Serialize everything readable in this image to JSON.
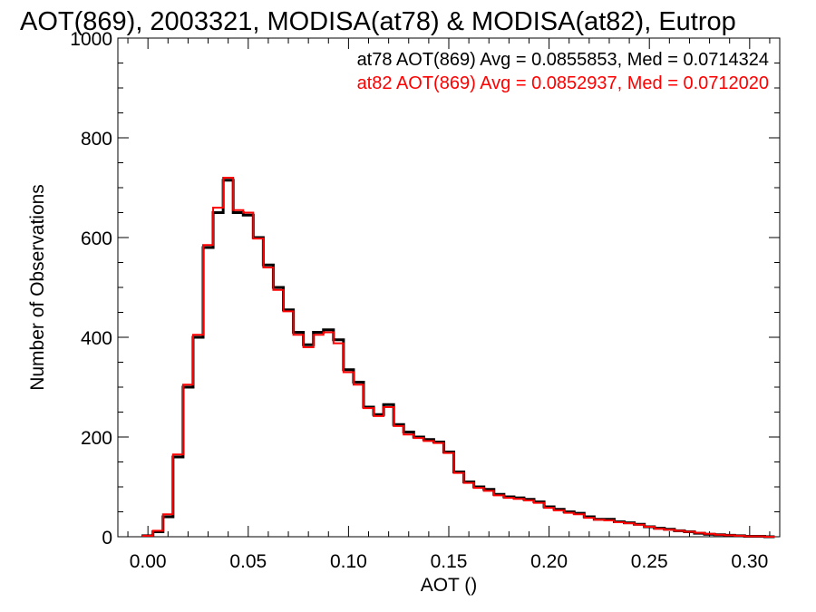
{
  "chart_data": {
    "type": "line",
    "title": "AOT(869), 2003321, MODISA(at78) & MODISA(at82), Eutrop",
    "xlabel": "AOT ()",
    "ylabel": "Number of Observations",
    "xlim": [
      -0.015,
      0.315
    ],
    "ylim": [
      0,
      1000
    ],
    "xticks": [
      0.0,
      0.05,
      0.1,
      0.15,
      0.2,
      0.25,
      0.3
    ],
    "xtick_labels": [
      "0.00",
      "0.05",
      "0.10",
      "0.15",
      "0.20",
      "0.25",
      "0.30"
    ],
    "yticks": [
      0,
      200,
      400,
      600,
      800,
      1000
    ],
    "ytick_labels": [
      "0",
      "200",
      "400",
      "600",
      "800",
      "1000"
    ],
    "grid": false,
    "legend_position": "top-right",
    "annotations": [
      {
        "text": "at78 AOT(869) Avg = 0.0855853, Med = 0.0714324",
        "color": "#000000"
      },
      {
        "text": "at82 AOT(869) Avg = 0.0852937, Med = 0.0712020",
        "color": "#ff0000"
      }
    ],
    "series": [
      {
        "color": "#000000",
        "x": [
          0.0,
          0.005,
          0.01,
          0.015,
          0.02,
          0.025,
          0.03,
          0.035,
          0.04,
          0.045,
          0.05,
          0.055,
          0.06,
          0.065,
          0.07,
          0.075,
          0.08,
          0.085,
          0.09,
          0.095,
          0.1,
          0.105,
          0.11,
          0.115,
          0.12,
          0.125,
          0.13,
          0.135,
          0.14,
          0.145,
          0.15,
          0.155,
          0.16,
          0.165,
          0.17,
          0.175,
          0.18,
          0.185,
          0.19,
          0.195,
          0.2,
          0.205,
          0.21,
          0.215,
          0.22,
          0.225,
          0.23,
          0.235,
          0.24,
          0.245,
          0.25,
          0.255,
          0.26,
          0.265,
          0.27,
          0.275,
          0.28,
          0.285,
          0.29,
          0.295,
          0.3,
          0.305,
          0.31
        ],
        "y": [
          2,
          10,
          40,
          160,
          300,
          400,
          580,
          650,
          715,
          650,
          645,
          600,
          545,
          500,
          455,
          410,
          385,
          410,
          415,
          395,
          335,
          310,
          260,
          245,
          265,
          225,
          210,
          200,
          195,
          190,
          170,
          130,
          110,
          100,
          95,
          85,
          80,
          78,
          75,
          70,
          60,
          55,
          50,
          47,
          40,
          35,
          35,
          30,
          28,
          25,
          20,
          17,
          15,
          12,
          10,
          7,
          5,
          4,
          3,
          2,
          1,
          1,
          0
        ]
      },
      {
        "color": "#ff0000",
        "x": [
          0.0,
          0.005,
          0.01,
          0.015,
          0.02,
          0.025,
          0.03,
          0.035,
          0.04,
          0.045,
          0.05,
          0.055,
          0.06,
          0.065,
          0.07,
          0.075,
          0.08,
          0.085,
          0.09,
          0.095,
          0.1,
          0.105,
          0.11,
          0.115,
          0.12,
          0.125,
          0.13,
          0.135,
          0.14,
          0.145,
          0.15,
          0.155,
          0.16,
          0.165,
          0.17,
          0.175,
          0.18,
          0.185,
          0.19,
          0.195,
          0.2,
          0.205,
          0.21,
          0.215,
          0.22,
          0.225,
          0.23,
          0.235,
          0.24,
          0.245,
          0.25,
          0.255,
          0.26,
          0.265,
          0.27,
          0.275,
          0.28,
          0.285,
          0.29,
          0.295,
          0.3,
          0.305,
          0.31
        ],
        "y": [
          2,
          12,
          45,
          165,
          305,
          405,
          585,
          660,
          720,
          655,
          650,
          598,
          540,
          495,
          452,
          405,
          380,
          405,
          410,
          388,
          330,
          305,
          258,
          242,
          260,
          222,
          205,
          198,
          192,
          188,
          168,
          128,
          108,
          98,
          92,
          83,
          78,
          76,
          73,
          68,
          58,
          53,
          48,
          45,
          38,
          34,
          33,
          29,
          27,
          24,
          20,
          16,
          14,
          12,
          10,
          8,
          6,
          4,
          3,
          2,
          1,
          1,
          0
        ]
      }
    ]
  }
}
